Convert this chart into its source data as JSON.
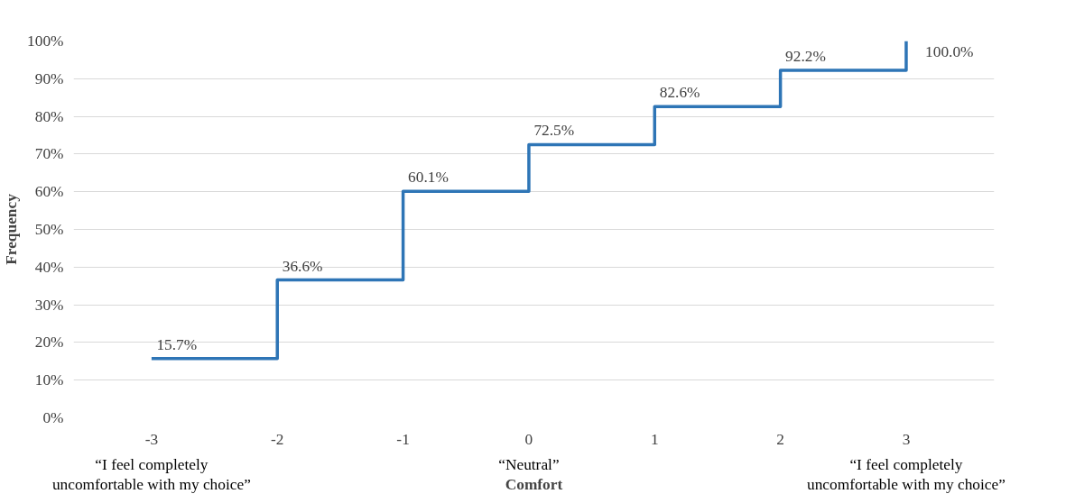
{
  "chart_data": {
    "type": "step",
    "xlabel": "Comfort",
    "ylabel": "Frequency",
    "x": [
      -3,
      -2,
      -1,
      0,
      1,
      2,
      3
    ],
    "series": [
      {
        "color": "#2e75b6",
        "values": [
          15.7,
          36.6,
          60.1,
          72.5,
          82.6,
          92.2,
          100.0
        ],
        "value_labels": [
          "15.7%",
          "36.6%",
          "60.1%",
          "72.5%",
          "82.6%",
          "92.2%",
          "100.0%"
        ]
      }
    ],
    "xlim": [
      -3.62,
      3.7
    ],
    "ylim": [
      0,
      100
    ],
    "xticks": [
      {
        "value": -3,
        "label": "-3"
      },
      {
        "value": -2,
        "label": "-2"
      },
      {
        "value": -1,
        "label": "-1"
      },
      0,
      1,
      2,
      3
    ],
    "yticks": [
      {
        "value": 0,
        "label": "0%"
      },
      {
        "value": 10,
        "label": "10%"
      },
      {
        "value": 20,
        "label": "20%"
      },
      {
        "value": 30,
        "label": "30%"
      },
      {
        "value": 40,
        "label": "40%"
      },
      {
        "value": 50,
        "label": "50%"
      },
      {
        "value": 60,
        "label": "60%"
      },
      {
        "value": 70,
        "label": "70%"
      },
      {
        "value": 80,
        "label": "80%"
      },
      {
        "value": 90,
        "label": "90%"
      },
      {
        "value": 100,
        "label": "100%"
      }
    ],
    "grid": "y",
    "marker": "none",
    "line_style": "solid",
    "annotations": [
      "“I feel completely\nuncomfortable with my choice”",
      "“Neutral”",
      "“I feel completely\nuncomfortable with my choice”"
    ]
  }
}
